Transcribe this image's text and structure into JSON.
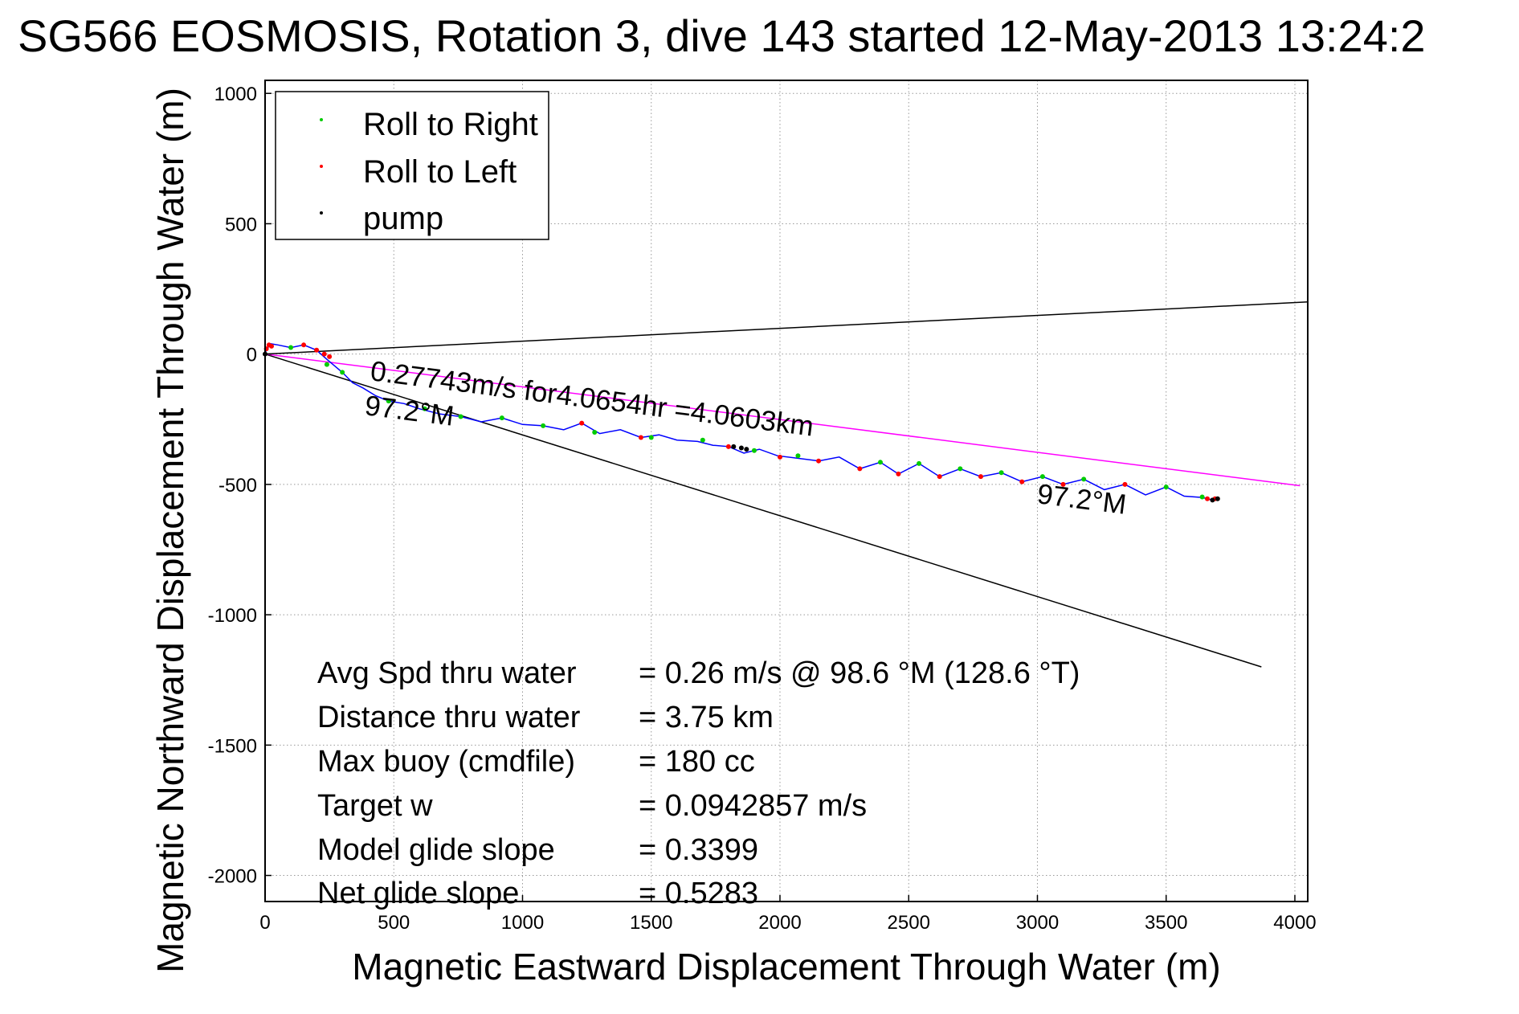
{
  "chart_data": {
    "type": "line",
    "title": "SG566 EOSMOSIS, Rotation 3, dive 143 started 12-May-2013 13:24:2",
    "xlabel": "Magnetic Eastward Displacement Through Water (m)",
    "ylabel": "Magnetic Northward Displacement Through Water (m)",
    "xlim": [
      0,
      4050
    ],
    "ylim": [
      -2100,
      1050
    ],
    "xticks": [
      0,
      500,
      1000,
      1500,
      2000,
      2500,
      3000,
      3500,
      4000
    ],
    "yticks": [
      1000,
      500,
      0,
      -500,
      -1000,
      -1500,
      -2000
    ],
    "grid": true,
    "legend_position": "top-left",
    "legend": [
      {
        "label": "Roll to Right",
        "color": "#00cc00"
      },
      {
        "label": "Roll to Left",
        "color": "#ff0000"
      },
      {
        "label": "pump",
        "color": "#000000"
      }
    ],
    "track": {
      "color": "#0000ff",
      "x": [
        0,
        20,
        50,
        100,
        150,
        200,
        240,
        270,
        300,
        340,
        380,
        430,
        480,
        540,
        600,
        680,
        760,
        840,
        920,
        1000,
        1080,
        1160,
        1230,
        1300,
        1380,
        1460,
        1530,
        1600,
        1680,
        1740,
        1800,
        1860,
        1920,
        1990,
        2070,
        2150,
        2230,
        2310,
        2390,
        2460,
        2540,
        2620,
        2700,
        2780,
        2860,
        2940,
        3020,
        3100,
        3180,
        3260,
        3340,
        3420,
        3500,
        3570,
        3640,
        3680
      ],
      "y": [
        5,
        40,
        35,
        25,
        35,
        15,
        -20,
        -45,
        -70,
        -110,
        -130,
        -160,
        -180,
        -190,
        -210,
        -230,
        -240,
        -260,
        -245,
        -270,
        -275,
        -290,
        -265,
        -305,
        -290,
        -320,
        -310,
        -330,
        -335,
        -350,
        -355,
        -380,
        -365,
        -390,
        -400,
        -410,
        -395,
        -440,
        -415,
        -460,
        -420,
        -470,
        -440,
        -470,
        -455,
        -490,
        -470,
        -500,
        -480,
        -520,
        -500,
        -540,
        -510,
        -545,
        -550,
        -560
      ]
    },
    "roll_right_points": {
      "color": "#00cc00",
      "x": [
        100,
        240,
        300,
        480,
        620,
        760,
        920,
        1080,
        1280,
        1500,
        1700,
        1900,
        2070,
        2390,
        2540,
        2700,
        2860,
        3020,
        3180,
        3500,
        3640
      ],
      "y": [
        25,
        -40,
        -70,
        -180,
        -210,
        -240,
        -245,
        -275,
        -300,
        -320,
        -330,
        -370,
        -390,
        -415,
        -420,
        -440,
        -455,
        -470,
        -480,
        -510,
        -548
      ]
    },
    "roll_left_points": {
      "color": "#ff0000",
      "x": [
        5,
        15,
        25,
        150,
        200,
        230,
        250,
        1230,
        1460,
        1800,
        2000,
        2150,
        2310,
        2460,
        2620,
        2780,
        2940,
        3100,
        3340,
        3660,
        3690
      ],
      "y": [
        20,
        35,
        30,
        35,
        15,
        0,
        -10,
        -265,
        -320,
        -355,
        -395,
        -410,
        -440,
        -460,
        -470,
        -470,
        -490,
        -500,
        -500,
        -555,
        -555
      ]
    },
    "pump_points": {
      "color": "#000000",
      "x": [
        0,
        1820,
        1850,
        1870,
        3680,
        3700
      ],
      "y": [
        0,
        -355,
        -360,
        -365,
        -560,
        -555
      ]
    },
    "reference_lines": [
      {
        "name": "upper-bound-line",
        "color": "#000000",
        "x": [
          0,
          4050
        ],
        "y": [
          0,
          200
        ]
      },
      {
        "name": "lower-bound-line",
        "color": "#000000",
        "x": [
          0,
          3870
        ],
        "y": [
          0,
          -1200
        ]
      },
      {
        "name": "heading-line",
        "color": "#ff00ff",
        "x": [
          0,
          4020
        ],
        "y": [
          0,
          -505
        ]
      }
    ],
    "annotations": {
      "heading_speed": "0.27743m/s for4.0654hr =4.0603km",
      "heading_start": "97.2°M",
      "heading_end": "97.2°M"
    },
    "stats": [
      {
        "label": "Avg Spd thru water",
        "value": "=  0.26 m/s @  98.6 °M (128.6 °T)"
      },
      {
        "label": "Distance thru water",
        "value": "=  3.75 km"
      },
      {
        "label": "Max buoy (cmdfile)",
        "value": "= 180 cc"
      },
      {
        "label": "Target w",
        "value": "= 0.0942857 m/s"
      },
      {
        "label": "Model glide slope",
        "value": "= 0.3399"
      },
      {
        "label": "Net glide slope",
        "value": "= 0.5283"
      }
    ]
  }
}
